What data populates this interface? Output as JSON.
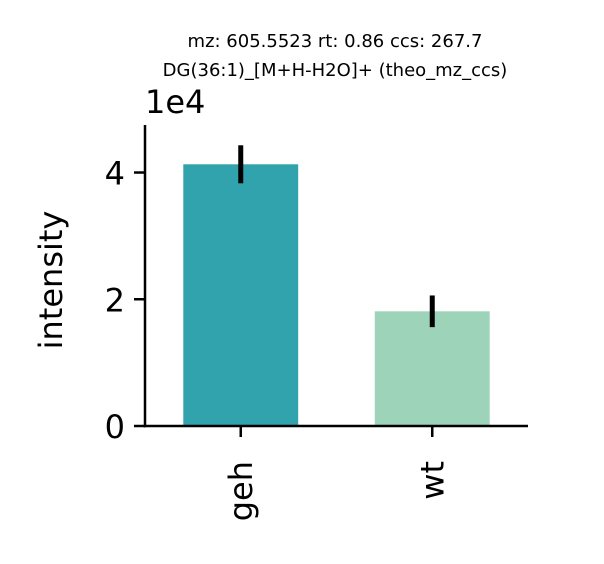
{
  "chart_data": {
    "type": "bar",
    "title_lines": [
      "mz: 605.5523 rt: 0.86 ccs: 267.7",
      "DG(36:1)_[M+H-H2O]+ (theo_mz_ccs)"
    ],
    "categories": [
      "geh",
      "wt"
    ],
    "values": [
      41300,
      18100
    ],
    "errors": [
      3000,
      2500
    ],
    "colors": [
      "#31a3ad",
      "#9dd3b8"
    ],
    "ylabel": "intensity",
    "xlabel": "",
    "ylim": [
      0,
      47500
    ],
    "yticks": [
      0,
      20000,
      40000
    ],
    "ytick_labels": [
      "0",
      "2",
      "4"
    ],
    "offset_text": "1e4"
  }
}
